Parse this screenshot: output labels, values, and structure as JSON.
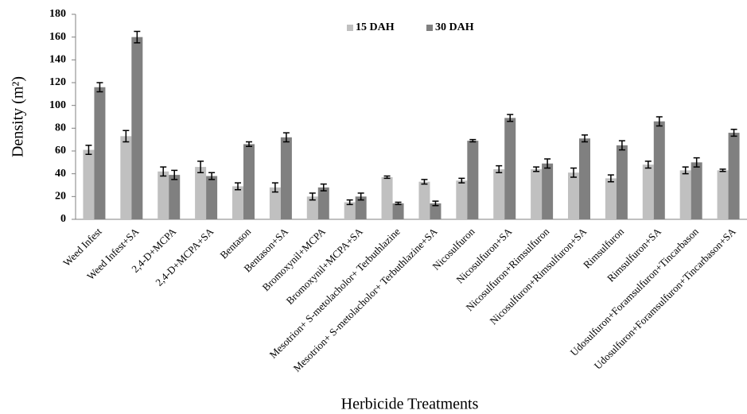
{
  "chart_data": {
    "type": "bar",
    "x_label": "Herbicide Treatments",
    "y_label": "Density (m²)",
    "categories": [
      "Weed Infest",
      "Weed Infest+SA",
      "2,4-D+MCPA",
      "2,4-D+MCPA+SA",
      "Bentason",
      "Bentason+SA",
      "Bromoxynil+MCPA",
      "Bromoxynil+MCPA+SA",
      "Mesotrion+ S-metolacholor+ Terbuthlazine",
      "Mesotrion+ S-metolacholor+ Terbuthlazine+SA",
      "Nicosulfuron",
      "Nicosulfuron+SA",
      "Nicosulfuron+Rimsulfuron",
      "Nicosulfuron+Rimsulfuron+SA",
      "Rimsulfuron",
      "Rimsulfuron+SA",
      "Udosulfuron+Foramsulfuron+Tincarbason",
      "Udosulfuron+Foramsulfuron+Tincarbason+SA"
    ],
    "series": [
      {
        "name": "15 DAH",
        "color": "#c0c0c0",
        "values": [
          61,
          73,
          42,
          46,
          29,
          28,
          20,
          15,
          37,
          33,
          34,
          44,
          44,
          41,
          36,
          48,
          43,
          43
        ],
        "errors": [
          4,
          5,
          4,
          5,
          3,
          4,
          3,
          2,
          1,
          2,
          2,
          3,
          2,
          4,
          3,
          3,
          3,
          1
        ]
      },
      {
        "name": "30 DAH",
        "color": "#808080",
        "values": [
          116,
          160,
          39,
          38,
          66,
          72,
          28,
          20,
          14,
          14,
          69,
          89,
          49,
          71,
          65,
          86,
          50,
          76
        ],
        "errors": [
          4,
          5,
          4,
          3,
          2,
          4,
          3,
          3,
          1,
          2,
          1,
          3,
          4,
          3,
          4,
          4,
          4,
          3
        ]
      }
    ],
    "ylim": [
      0,
      180
    ],
    "yticks": [
      0,
      20,
      40,
      60,
      80,
      100,
      120,
      140,
      160,
      180
    ],
    "legend": "top"
  }
}
